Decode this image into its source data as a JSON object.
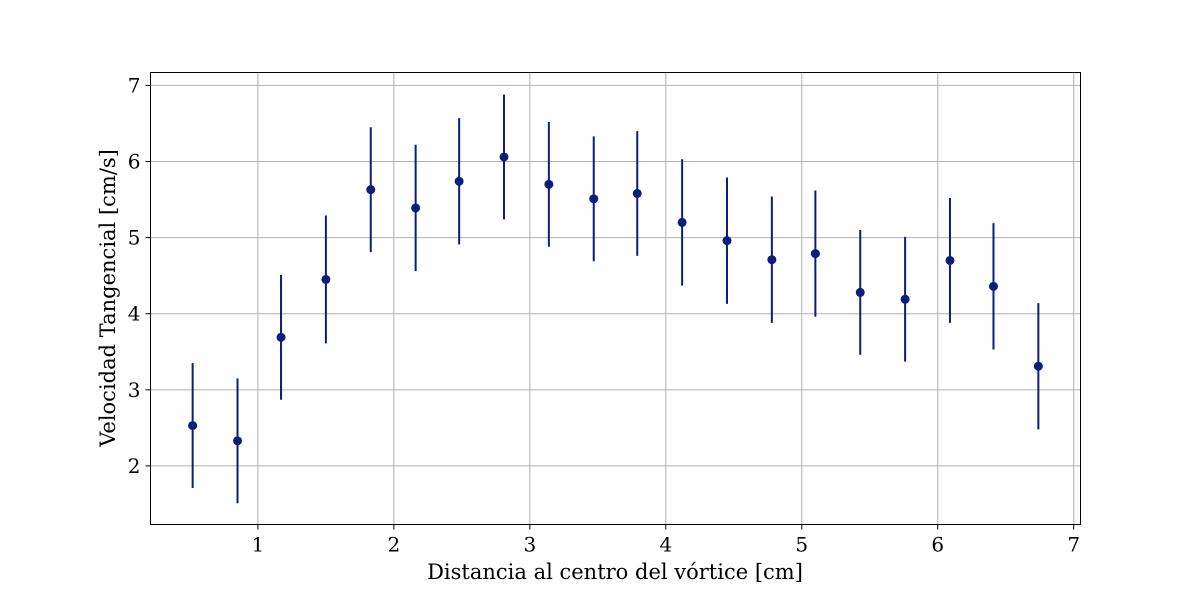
{
  "chart_data": {
    "type": "scatter",
    "title": "",
    "xlabel": "Distancia al centro del vórtice [cm]",
    "ylabel": "Velocidad Tangencial [cm/s]",
    "xlim": [
      0.21,
      7.05
    ],
    "ylim": [
      1.23,
      7.17
    ],
    "xticks": [
      "1",
      "2",
      "3",
      "4",
      "5",
      "6",
      "7"
    ],
    "yticks": [
      "2",
      "3",
      "4",
      "5",
      "6",
      "7"
    ],
    "grid": true,
    "legend": "none",
    "marker_color": "#0b1f7a",
    "series": [
      {
        "x": [
          0.52,
          0.85,
          1.17,
          1.5,
          1.83,
          2.16,
          2.48,
          2.81,
          3.14,
          3.47,
          3.79,
          4.12,
          4.45,
          4.78,
          5.1,
          5.43,
          5.76,
          6.09,
          6.41,
          6.74
        ],
        "y": [
          2.53,
          2.33,
          3.69,
          4.45,
          5.63,
          5.39,
          5.74,
          6.06,
          5.7,
          5.51,
          5.58,
          5.2,
          4.96,
          4.71,
          4.79,
          4.28,
          4.19,
          4.7,
          4.36,
          3.31
        ],
        "yerr": [
          0.82,
          0.82,
          0.82,
          0.84,
          0.82,
          0.83,
          0.83,
          0.82,
          0.82,
          0.82,
          0.82,
          0.83,
          0.83,
          0.83,
          0.83,
          0.82,
          0.82,
          0.82,
          0.83,
          0.83
        ]
      }
    ]
  }
}
